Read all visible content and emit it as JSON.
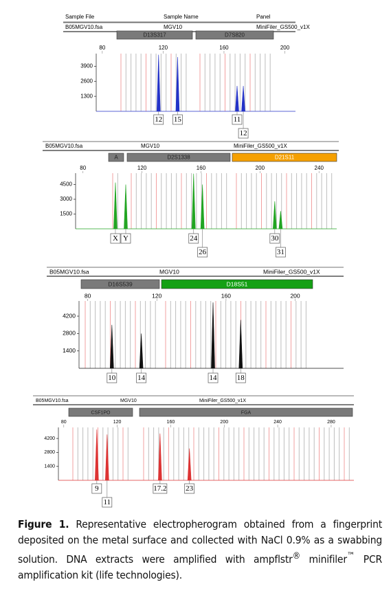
{
  "columns": [
    "Sample File",
    "Sample Name",
    "Panel"
  ],
  "panels": [
    {
      "file": "B05MGV10.fsa",
      "sample": "MGV10",
      "panel": "MiniFiler_GS500_v1X",
      "color": "#2433c8",
      "loci": [
        {
          "name": "D13S317",
          "color": "#7a7a7a"
        },
        {
          "name": "D7S820",
          "color": "#7a7a7a"
        }
      ],
      "xlim": [
        76,
        207
      ],
      "xticks": [
        80,
        120,
        160,
        200
      ],
      "ylim": [
        0,
        5000
      ],
      "yticks": [
        1300,
        2600,
        3900
      ],
      "peaks": [
        {
          "x": 117,
          "height": 4900,
          "label": "12"
        },
        {
          "x": 129.5,
          "height": 4700,
          "label": "15"
        },
        {
          "x": 168.6,
          "height": 2200,
          "label": "11"
        },
        {
          "x": 172.7,
          "height": 2200,
          "label": "12"
        }
      ]
    },
    {
      "file": "B05MGV10.fsa",
      "sample": "MGV10",
      "panel": "MiniFiler_GS500_v1X",
      "color": "#22a522",
      "loci": [
        {
          "name": "A",
          "color": "#7a7a7a"
        },
        {
          "name": "D2S1338",
          "color": "#7a7a7a"
        },
        {
          "name": "D21S11",
          "color": "#f5a000"
        }
      ],
      "xlim": [
        75,
        252
      ],
      "xticks": [
        80,
        120,
        160,
        200,
        240
      ],
      "ylim": [
        0,
        5650
      ],
      "yticks": [
        1500,
        3000,
        4500
      ],
      "peaks": [
        {
          "x": 102,
          "height": 4700,
          "label": "X"
        },
        {
          "x": 109,
          "height": 4500,
          "label": "Y"
        },
        {
          "x": 155,
          "height": 5600,
          "label": "24"
        },
        {
          "x": 161,
          "height": 4500,
          "label": "26"
        },
        {
          "x": 210,
          "height": 2800,
          "label": "30"
        },
        {
          "x": 214,
          "height": 1800,
          "label": "31"
        }
      ]
    },
    {
      "file": "B05MGV10.fsa",
      "sample": "MGV10",
      "panel": "MiniFiler_GS500_v1X",
      "color": "#111111",
      "loci": [
        {
          "name": "D16S539",
          "color": "#7a7a7a"
        },
        {
          "name": "D18S51",
          "color": "#14a014"
        }
      ],
      "xlim": [
        75,
        228
      ],
      "xticks": [
        80,
        120,
        160,
        200
      ],
      "ylim": [
        0,
        5420
      ],
      "yticks": [
        1400,
        2800,
        4200
      ],
      "peaks": [
        {
          "x": 94,
          "height": 3500,
          "label": "10"
        },
        {
          "x": 111,
          "height": 2800,
          "label": "14"
        },
        {
          "x": 152.5,
          "height": 5300,
          "label": "14"
        },
        {
          "x": 168.5,
          "height": 3900,
          "label": "18"
        }
      ]
    },
    {
      "file": "B05MGV10.fsa",
      "sample": "MGV10",
      "panel": "MiniFiler_GS500_v1X",
      "color": "#dd3333",
      "loci": [
        {
          "name": "CSF1PO",
          "color": "#7a7a7a"
        },
        {
          "name": "FGA",
          "color": "#7a7a7a"
        }
      ],
      "xlim": [
        76,
        297
      ],
      "xticks": [
        80,
        120,
        160,
        200,
        240,
        280
      ],
      "ylim": [
        0,
        5310
      ],
      "yticks": [
        1400,
        2800,
        4200
      ],
      "peaks": [
        {
          "x": 104.7,
          "height": 5100,
          "label": "9"
        },
        {
          "x": 112.4,
          "height": 4600,
          "label": "11"
        },
        {
          "x": 152,
          "height": 4700,
          "label": "17.2"
        },
        {
          "x": 174,
          "height": 3200,
          "label": "23"
        }
      ]
    }
  ],
  "caption": {
    "label": "Figure 1.",
    "text": "Representative electropherogram obtained from a fingerprint deposited on the metal surface and collected with NaCl 0.9% as a swabbing solution. DNA extracts were amplified with ampflstr",
    "mark1": "®",
    "text2": " minifiler",
    "mark2": "™",
    "text3": " PCR amplification kit (life technologies)."
  }
}
